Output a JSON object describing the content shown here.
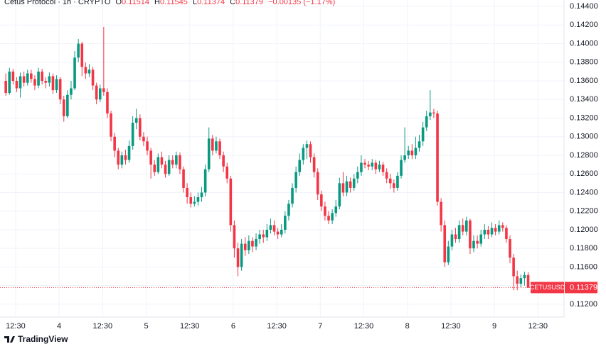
{
  "chart_data": {
    "type": "candlestick",
    "title": "Cetus Protocol · 1h · CRYPTO",
    "header": {
      "o": "O",
      "h": "H",
      "l": "L",
      "c": "C",
      "change": "−0.00135 (−1.17%)"
    },
    "symbol": "CETUSUSD",
    "brand": "TradingView",
    "colors": {
      "up": "#089981",
      "down": "#f23645"
    },
    "grid": true,
    "xlim": [
      -1.6,
      153.9
    ],
    "xticks": [
      {
        "value": 2.7,
        "label": "12:30"
      },
      {
        "value": 14.7,
        "label": "4"
      },
      {
        "value": 26.7,
        "label": "12:30"
      },
      {
        "value": 38.7,
        "label": "5"
      },
      {
        "value": 50.7,
        "label": "12:30"
      },
      {
        "value": 62.7,
        "label": "6"
      },
      {
        "value": 74.7,
        "label": "12:30"
      },
      {
        "value": 86.7,
        "label": "7"
      },
      {
        "value": 98.7,
        "label": "12:30"
      },
      {
        "value": 110.7,
        "label": "8"
      },
      {
        "value": 122.7,
        "label": "12:30"
      },
      {
        "value": 134.7,
        "label": "9"
      },
      {
        "value": 146.7,
        "label": "12:30"
      }
    ],
    "ylim": [
      0.11062,
      0.14469
    ],
    "yticks": [
      {
        "value": 0.144,
        "label": "0.14400"
      },
      {
        "value": 0.142,
        "label": "0.14200"
      },
      {
        "value": 0.14,
        "label": "0.14000"
      },
      {
        "value": 0.138,
        "label": "0.13800"
      },
      {
        "value": 0.136,
        "label": "0.13600"
      },
      {
        "value": 0.134,
        "label": "0.13400"
      },
      {
        "value": 0.132,
        "label": "0.13200"
      },
      {
        "value": 0.13,
        "label": "0.13000"
      },
      {
        "value": 0.128,
        "label": "0.12800"
      },
      {
        "value": 0.126,
        "label": "0.12600"
      },
      {
        "value": 0.124,
        "label": "0.12400"
      },
      {
        "value": 0.122,
        "label": "0.12200"
      },
      {
        "value": 0.12,
        "label": "0.12000"
      },
      {
        "value": 0.118,
        "label": "0.11800"
      },
      {
        "value": 0.116,
        "label": "0.11600"
      },
      {
        "value": 0.114,
        "label": "0.11400"
      },
      {
        "value": 0.112,
        "label": "0.11200"
      }
    ],
    "ohlc": [
      [
        0.136,
        0.1368,
        0.1344,
        0.1347
      ],
      [
        0.1347,
        0.1374,
        0.1345,
        0.137
      ],
      [
        0.137,
        0.1373,
        0.1356,
        0.136
      ],
      [
        0.136,
        0.1364,
        0.1348,
        0.1352
      ],
      [
        0.1352,
        0.1369,
        0.1342,
        0.1365
      ],
      [
        0.1365,
        0.137,
        0.1354,
        0.1358
      ],
      [
        0.1358,
        0.1372,
        0.1355,
        0.1368
      ],
      [
        0.1368,
        0.1372,
        0.1358,
        0.1362
      ],
      [
        0.1362,
        0.1366,
        0.135,
        0.1355
      ],
      [
        0.1355,
        0.1374,
        0.1352,
        0.137
      ],
      [
        0.137,
        0.1373,
        0.1356,
        0.136
      ],
      [
        0.136,
        0.1364,
        0.1352,
        0.1358
      ],
      [
        0.1358,
        0.1369,
        0.1354,
        0.1365
      ],
      [
        0.1365,
        0.1368,
        0.1346,
        0.135
      ],
      [
        0.135,
        0.1366,
        0.1347,
        0.1362
      ],
      [
        0.1362,
        0.1364,
        0.1335,
        0.134
      ],
      [
        0.134,
        0.1344,
        0.1316,
        0.1322
      ],
      [
        0.1322,
        0.135,
        0.132,
        0.1345
      ],
      [
        0.1345,
        0.136,
        0.134,
        0.1352
      ],
      [
        0.1352,
        0.1392,
        0.135,
        0.1385
      ],
      [
        0.1385,
        0.1405,
        0.138,
        0.14
      ],
      [
        0.14,
        0.1402,
        0.1365,
        0.1375
      ],
      [
        0.1375,
        0.138,
        0.1362,
        0.1368
      ],
      [
        0.1368,
        0.1378,
        0.1364,
        0.1372
      ],
      [
        0.1372,
        0.1375,
        0.135,
        0.1355
      ],
      [
        0.1355,
        0.1358,
        0.1335,
        0.134
      ],
      [
        0.134,
        0.1356,
        0.1337,
        0.1352
      ],
      [
        0.1352,
        0.1418,
        0.1344,
        0.1348
      ],
      [
        0.1348,
        0.1352,
        0.132,
        0.1325
      ],
      [
        0.1325,
        0.1328,
        0.1295,
        0.13
      ],
      [
        0.13,
        0.1304,
        0.1278,
        0.1285
      ],
      [
        0.1285,
        0.1288,
        0.1265,
        0.127
      ],
      [
        0.127,
        0.1284,
        0.1266,
        0.128
      ],
      [
        0.128,
        0.1286,
        0.127,
        0.1275
      ],
      [
        0.1275,
        0.1296,
        0.1272,
        0.129
      ],
      [
        0.129,
        0.1322,
        0.1286,
        0.1315
      ],
      [
        0.1315,
        0.133,
        0.1308,
        0.132
      ],
      [
        0.132,
        0.1324,
        0.1296,
        0.13
      ],
      [
        0.13,
        0.1305,
        0.129,
        0.1295
      ],
      [
        0.1295,
        0.13,
        0.128,
        0.1285
      ],
      [
        0.1285,
        0.1288,
        0.1255,
        0.127
      ],
      [
        0.127,
        0.1275,
        0.1258,
        0.1262
      ],
      [
        0.1262,
        0.1282,
        0.126,
        0.1278
      ],
      [
        0.1278,
        0.1284,
        0.1266,
        0.127
      ],
      [
        0.127,
        0.1274,
        0.1256,
        0.126
      ],
      [
        0.126,
        0.128,
        0.1258,
        0.1275
      ],
      [
        0.1275,
        0.128,
        0.1266,
        0.127
      ],
      [
        0.127,
        0.1284,
        0.1266,
        0.128
      ],
      [
        0.128,
        0.1283,
        0.126,
        0.1265
      ],
      [
        0.1265,
        0.1268,
        0.124,
        0.1245
      ],
      [
        0.1245,
        0.125,
        0.1228,
        0.1235
      ],
      [
        0.1235,
        0.124,
        0.1224,
        0.1228
      ],
      [
        0.1228,
        0.1236,
        0.1225,
        0.123
      ],
      [
        0.123,
        0.124,
        0.1226,
        0.1235
      ],
      [
        0.1235,
        0.1246,
        0.123,
        0.124
      ],
      [
        0.124,
        0.127,
        0.1236,
        0.1265
      ],
      [
        0.1265,
        0.131,
        0.1262,
        0.1298
      ],
      [
        0.1298,
        0.1302,
        0.128,
        0.1285
      ],
      [
        0.1285,
        0.13,
        0.1282,
        0.1295
      ],
      [
        0.1295,
        0.1298,
        0.1276,
        0.128
      ],
      [
        0.128,
        0.1284,
        0.1262,
        0.1268
      ],
      [
        0.1268,
        0.1272,
        0.125,
        0.1255
      ],
      [
        0.1255,
        0.1258,
        0.1198,
        0.1205
      ],
      [
        0.1205,
        0.121,
        0.117,
        0.118
      ],
      [
        0.118,
        0.1186,
        0.115,
        0.116
      ],
      [
        0.116,
        0.119,
        0.1156,
        0.1185
      ],
      [
        0.1185,
        0.1192,
        0.1172,
        0.1178
      ],
      [
        0.1178,
        0.1194,
        0.1174,
        0.1188
      ],
      [
        0.1188,
        0.1192,
        0.1176,
        0.1182
      ],
      [
        0.1182,
        0.1196,
        0.1178,
        0.119
      ],
      [
        0.119,
        0.12,
        0.1185,
        0.1195
      ],
      [
        0.1195,
        0.12,
        0.1186,
        0.1192
      ],
      [
        0.1192,
        0.1206,
        0.1188,
        0.12
      ],
      [
        0.12,
        0.1212,
        0.1196,
        0.1205
      ],
      [
        0.1205,
        0.121,
        0.1194,
        0.1198
      ],
      [
        0.1198,
        0.1202,
        0.119,
        0.1195
      ],
      [
        0.1195,
        0.1206,
        0.1192,
        0.12
      ],
      [
        0.12,
        0.122,
        0.1196,
        0.1215
      ],
      [
        0.1215,
        0.1232,
        0.121,
        0.1228
      ],
      [
        0.1228,
        0.125,
        0.1224,
        0.1245
      ],
      [
        0.1245,
        0.1268,
        0.124,
        0.1262
      ],
      [
        0.1262,
        0.1282,
        0.1258,
        0.1275
      ],
      [
        0.1275,
        0.1292,
        0.127,
        0.1288
      ],
      [
        0.1288,
        0.1296,
        0.1276,
        0.1292
      ],
      [
        0.1292,
        0.1295,
        0.1272,
        0.1278
      ],
      [
        0.1278,
        0.1282,
        0.1256,
        0.1262
      ],
      [
        0.1262,
        0.1266,
        0.1232,
        0.1238
      ],
      [
        0.1238,
        0.1242,
        0.122,
        0.1225
      ],
      [
        0.1225,
        0.123,
        0.121,
        0.1215
      ],
      [
        0.1215,
        0.122,
        0.1206,
        0.121
      ],
      [
        0.121,
        0.1222,
        0.1206,
        0.1218
      ],
      [
        0.1218,
        0.1232,
        0.1214,
        0.1225
      ],
      [
        0.1225,
        0.1256,
        0.1222,
        0.125
      ],
      [
        0.125,
        0.1262,
        0.1236,
        0.124
      ],
      [
        0.124,
        0.1258,
        0.1236,
        0.1252
      ],
      [
        0.1252,
        0.1256,
        0.124,
        0.1245
      ],
      [
        0.1245,
        0.126,
        0.1242,
        0.1255
      ],
      [
        0.1255,
        0.1268,
        0.125,
        0.1262
      ],
      [
        0.1262,
        0.128,
        0.1258,
        0.1272
      ],
      [
        0.1272,
        0.1276,
        0.1266,
        0.127
      ],
      [
        0.127,
        0.1274,
        0.1264,
        0.1268
      ],
      [
        0.1268,
        0.1276,
        0.1264,
        0.1272
      ],
      [
        0.1272,
        0.1275,
        0.126,
        0.1265
      ],
      [
        0.1265,
        0.1274,
        0.1262,
        0.127
      ],
      [
        0.127,
        0.1273,
        0.1258,
        0.1262
      ],
      [
        0.1262,
        0.1266,
        0.125,
        0.1255
      ],
      [
        0.1255,
        0.126,
        0.1244,
        0.125
      ],
      [
        0.125,
        0.1254,
        0.124,
        0.1245
      ],
      [
        0.1245,
        0.1262,
        0.1242,
        0.1258
      ],
      [
        0.1258,
        0.128,
        0.1255,
        0.1275
      ],
      [
        0.1275,
        0.131,
        0.1272,
        0.128
      ],
      [
        0.128,
        0.129,
        0.1276,
        0.1285
      ],
      [
        0.1285,
        0.1292,
        0.1276,
        0.128
      ],
      [
        0.128,
        0.13,
        0.1276,
        0.1288
      ],
      [
        0.1288,
        0.1302,
        0.1284,
        0.1295
      ],
      [
        0.1295,
        0.1316,
        0.129,
        0.131
      ],
      [
        0.131,
        0.1328,
        0.1306,
        0.1322
      ],
      [
        0.1322,
        0.135,
        0.1318,
        0.1326
      ],
      [
        0.1326,
        0.133,
        0.132,
        0.1325
      ],
      [
        0.1325,
        0.1328,
        0.1226,
        0.123
      ],
      [
        0.123,
        0.1234,
        0.1198,
        0.1205
      ],
      [
        0.1205,
        0.121,
        0.116,
        0.1165
      ],
      [
        0.1165,
        0.1188,
        0.1162,
        0.1182
      ],
      [
        0.1182,
        0.12,
        0.1178,
        0.1195
      ],
      [
        0.1195,
        0.1202,
        0.1186,
        0.119
      ],
      [
        0.119,
        0.121,
        0.1186,
        0.1205
      ],
      [
        0.1205,
        0.1212,
        0.1194,
        0.1198
      ],
      [
        0.1198,
        0.1214,
        0.1194,
        0.121
      ],
      [
        0.121,
        0.1212,
        0.1174,
        0.118
      ],
      [
        0.118,
        0.1194,
        0.1176,
        0.1188
      ],
      [
        0.1188,
        0.1194,
        0.118,
        0.1185
      ],
      [
        0.1185,
        0.12,
        0.1182,
        0.1195
      ],
      [
        0.1195,
        0.1206,
        0.119,
        0.12
      ],
      [
        0.12,
        0.1204,
        0.119,
        0.1195
      ],
      [
        0.1195,
        0.1208,
        0.1192,
        0.1202
      ],
      [
        0.1202,
        0.1206,
        0.1194,
        0.1198
      ],
      [
        0.1198,
        0.121,
        0.1195,
        0.1205
      ],
      [
        0.1205,
        0.1208,
        0.1198,
        0.1202
      ],
      [
        0.1202,
        0.1205,
        0.1186,
        0.119
      ],
      [
        0.119,
        0.1194,
        0.1164,
        0.117
      ],
      [
        0.117,
        0.1174,
        0.1135,
        0.115
      ],
      [
        0.115,
        0.1156,
        0.1135,
        0.1142
      ],
      [
        0.1142,
        0.1152,
        0.1138,
        0.1148
      ],
      [
        0.1148,
        0.1155,
        0.114,
        0.11514
      ],
      [
        0.11514,
        0.11545,
        0.11374,
        0.11379
      ]
    ]
  }
}
